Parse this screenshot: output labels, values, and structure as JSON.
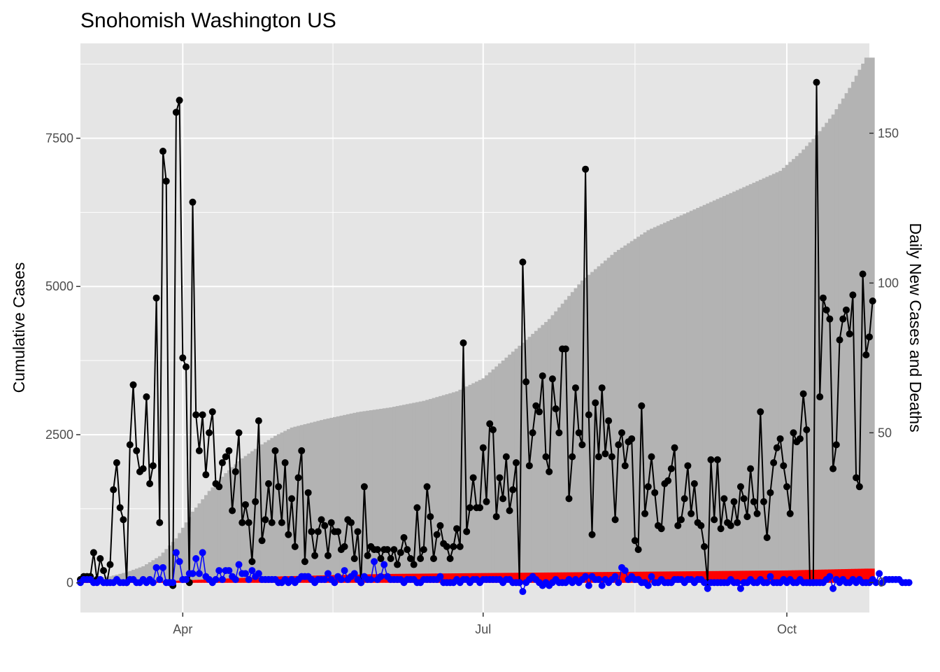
{
  "chart_data": {
    "type": "bar+line+scatter",
    "title": "Snohomish Washington US",
    "ylabel": "Cumulative Cases",
    "y2label": "Daily New Cases and Deaths",
    "x_range": [
      "2020-03-01",
      "2020-10-26"
    ],
    "x_ticks": [
      {
        "date": "2020-04-01",
        "label": "Apr"
      },
      {
        "date": "2020-07-01",
        "label": "Jul"
      },
      {
        "date": "2020-10-01",
        "label": "Oct"
      }
    ],
    "y_left": {
      "min": -500,
      "max": 9100,
      "ticks": [
        0,
        2500,
        5000,
        7500
      ]
    },
    "y_right": {
      "min": -10,
      "max": 180,
      "ticks": [
        0,
        50,
        100,
        150
      ]
    },
    "grid": true,
    "colors": {
      "panel": "#e5e5e5",
      "grid": "#ffffff",
      "cumulative_cases": "#b3b3b3",
      "cumulative_deaths": "#ff0000",
      "daily_cases": "#000000",
      "daily_deaths": "#0000ff"
    },
    "cumulative_cases": {
      "start_date": "2020-03-01",
      "knots": [
        [
          "2020-03-01",
          60
        ],
        [
          "2020-03-10",
          110
        ],
        [
          "2020-03-15",
          180
        ],
        [
          "2020-03-20",
          280
        ],
        [
          "2020-03-25",
          450
        ],
        [
          "2020-03-30",
          750
        ],
        [
          "2020-04-04",
          1200
        ],
        [
          "2020-04-09",
          1550
        ],
        [
          "2020-04-14",
          1850
        ],
        [
          "2020-04-19",
          2100
        ],
        [
          "2020-04-24",
          2300
        ],
        [
          "2020-04-29",
          2480
        ],
        [
          "2020-05-04",
          2620
        ],
        [
          "2020-05-14",
          2760
        ],
        [
          "2020-05-24",
          2880
        ],
        [
          "2020-06-03",
          2960
        ],
        [
          "2020-06-13",
          3070
        ],
        [
          "2020-06-23",
          3230
        ],
        [
          "2020-07-01",
          3450
        ],
        [
          "2020-07-11",
          3950
        ],
        [
          "2020-07-21",
          4450
        ],
        [
          "2020-07-31",
          5100
        ],
        [
          "2020-08-10",
          5580
        ],
        [
          "2020-08-20",
          5950
        ],
        [
          "2020-08-30",
          6200
        ],
        [
          "2020-09-09",
          6450
        ],
        [
          "2020-09-19",
          6700
        ],
        [
          "2020-09-29",
          6950
        ],
        [
          "2020-10-05",
          7250
        ],
        [
          "2020-10-10",
          7550
        ],
        [
          "2020-10-15",
          7900
        ],
        [
          "2020-10-20",
          8350
        ],
        [
          "2020-10-25",
          8860
        ]
      ]
    },
    "cumulative_deaths": {
      "knots": [
        [
          "2020-03-01",
          3
        ],
        [
          "2020-03-20",
          15
        ],
        [
          "2020-04-01",
          40
        ],
        [
          "2020-04-15",
          75
        ],
        [
          "2020-05-01",
          110
        ],
        [
          "2020-06-01",
          150
        ],
        [
          "2020-07-01",
          165
        ],
        [
          "2020-08-01",
          180
        ],
        [
          "2020-09-01",
          195
        ],
        [
          "2020-10-01",
          210
        ],
        [
          "2020-10-25",
          240
        ]
      ]
    },
    "daily_cases": {
      "start_date": "2020-03-01",
      "values": [
        1,
        2,
        2,
        2,
        10,
        1,
        8,
        4,
        0,
        6,
        31,
        40,
        25,
        21,
        0,
        46,
        66,
        44,
        37,
        38,
        62,
        33,
        39,
        95,
        20,
        144,
        134,
        0,
        -1,
        157,
        161,
        75,
        72,
        0,
        127,
        56,
        44,
        56,
        36,
        50,
        57,
        33,
        32,
        40,
        42,
        44,
        24,
        37,
        50,
        20,
        26,
        20,
        7,
        27,
        54,
        14,
        21,
        33,
        20,
        44,
        32,
        20,
        40,
        16,
        28,
        12,
        35,
        44,
        7,
        30,
        17,
        9,
        17,
        21,
        19,
        9,
        20,
        17,
        17,
        11,
        12,
        21,
        20,
        8,
        17,
        0,
        32,
        9,
        12,
        11,
        11,
        8,
        11,
        11,
        8,
        11,
        6,
        10,
        15,
        11,
        8,
        6,
        25,
        8,
        11,
        32,
        22,
        8,
        16,
        19,
        13,
        12,
        8,
        12,
        18,
        12,
        80,
        17,
        25,
        35,
        25,
        25,
        45,
        27,
        53,
        51,
        22,
        35,
        28,
        42,
        24,
        31,
        40,
        0,
        107,
        67,
        39,
        50,
        59,
        57,
        69,
        42,
        37,
        68,
        58,
        50,
        78,
        78,
        28,
        42,
        65,
        50,
        46,
        138,
        56,
        16,
        60,
        42,
        65,
        43,
        54,
        42,
        21,
        46,
        50,
        39,
        47,
        48,
        14,
        11,
        59,
        23,
        32,
        42,
        30,
        19,
        18,
        33,
        34,
        38,
        45,
        19,
        21,
        28,
        39,
        23,
        33,
        20,
        19,
        12,
        0,
        41,
        21,
        41,
        18,
        28,
        20,
        19,
        27,
        20,
        32,
        28,
        22,
        38,
        27,
        23,
        57,
        27,
        15,
        30,
        40,
        45,
        48,
        39,
        32,
        23,
        50,
        47,
        48,
        63,
        51,
        0,
        0,
        167,
        62,
        95,
        91,
        88,
        38,
        46,
        81,
        88,
        91,
        83,
        96,
        35,
        32,
        103,
        76,
        82,
        94
      ]
    },
    "daily_deaths": {
      "start_date": "2020-03-01",
      "values": [
        0,
        1,
        1,
        1,
        0,
        0,
        1,
        0,
        0,
        0,
        0,
        1,
        0,
        0,
        0,
        1,
        1,
        0,
        0,
        1,
        0,
        1,
        0,
        5,
        1,
        5,
        0,
        0,
        0,
        10,
        7,
        1,
        1,
        3,
        3,
        8,
        3,
        10,
        2,
        1,
        0,
        1,
        4,
        1,
        4,
        4,
        2,
        1,
        6,
        3,
        3,
        1,
        4,
        2,
        3,
        1,
        1,
        1,
        1,
        1,
        0,
        0,
        1,
        0,
        1,
        0,
        1,
        2,
        2,
        2,
        1,
        0,
        1,
        1,
        1,
        3,
        1,
        0,
        2,
        1,
        4,
        1,
        2,
        3,
        1,
        0,
        2,
        1,
        1,
        7,
        1,
        2,
        6,
        2,
        1,
        1,
        1,
        1,
        0,
        1,
        1,
        1,
        0,
        0,
        1,
        1,
        1,
        1,
        1,
        2,
        0,
        0,
        0,
        0,
        1,
        0,
        1,
        1,
        0,
        1,
        1,
        0,
        1,
        1,
        1,
        1,
        1,
        1,
        0,
        1,
        1,
        0,
        0,
        0,
        -3,
        0,
        1,
        2,
        1,
        0,
        -1,
        0,
        -1,
        0,
        1,
        0,
        0,
        0,
        1,
        0,
        1,
        0,
        1,
        2,
        -1,
        2,
        1,
        1,
        -1,
        1,
        0,
        1,
        2,
        0,
        5,
        4,
        1,
        2,
        1,
        1,
        0,
        0,
        -1,
        2,
        0,
        0,
        1,
        0,
        0,
        0,
        1,
        1,
        1,
        0,
        1,
        1,
        0,
        1,
        1,
        0,
        -2,
        0,
        0,
        0,
        0,
        0,
        0,
        1,
        0,
        0,
        -2,
        0,
        0,
        1,
        0,
        0,
        1,
        0,
        0,
        2,
        0,
        0,
        0,
        1,
        0,
        1,
        0,
        0,
        1,
        0,
        0,
        0,
        0,
        0,
        0,
        0,
        1,
        2,
        -2,
        1,
        0,
        1,
        0,
        0,
        1,
        0,
        1,
        0,
        0,
        0,
        1,
        0,
        3,
        0,
        1,
        1,
        1,
        1,
        1,
        0,
        0,
        0
      ]
    }
  }
}
